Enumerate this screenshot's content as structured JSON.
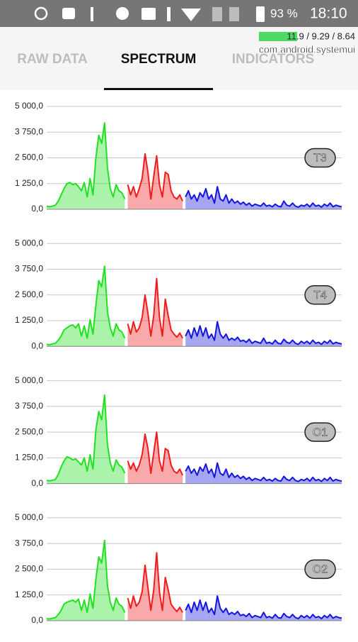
{
  "status_bar": {
    "battery": "93 %",
    "time": "18:10"
  },
  "overlay": {
    "stats": "11.9 / 9.29 / 8.64",
    "process": "com.android.systemui"
  },
  "tabs": {
    "items": [
      "RAW DATA",
      "SPECTRUM",
      "INDICATORS"
    ],
    "selected": 1
  },
  "chart_data": [
    {
      "type": "area",
      "label": "T3",
      "ylim": [
        0,
        5000
      ],
      "grid": true,
      "yticks": [
        {
          "value": 0,
          "label": "0,0"
        },
        {
          "value": 1250,
          "label": "1 250,0"
        },
        {
          "value": 2500,
          "label": "2 500,0"
        },
        {
          "value": 3750,
          "label": "3 750,0"
        },
        {
          "value": 5000,
          "label": "5 000,0"
        }
      ],
      "series": [
        {
          "color": "#22e022",
          "values": [
            150,
            120,
            150,
            200,
            400,
            700,
            1000,
            1250,
            1300,
            1200,
            1250,
            1100,
            900,
            1300,
            600,
            1500,
            700,
            2500,
            3600,
            3200,
            4200,
            2000,
            1000,
            600,
            1200,
            900,
            800,
            500
          ]
        },
        {
          "color": "#ee1c1c",
          "values": [
            1200,
            700,
            1100,
            600,
            1000,
            1500,
            2700,
            1800,
            500,
            1600,
            2600,
            1200,
            600,
            1800,
            1700,
            900,
            600,
            500,
            700,
            400
          ]
        },
        {
          "color": "#1515dd",
          "values": [
            600,
            900,
            500,
            700,
            400,
            800,
            600,
            1000,
            500,
            700,
            300,
            1100,
            500,
            400,
            700,
            300,
            500,
            300,
            400,
            250,
            350,
            200,
            300,
            150,
            250,
            200,
            150,
            300,
            150,
            200,
            120,
            250,
            150,
            120,
            400,
            200,
            150,
            300,
            150,
            100,
            200,
            150,
            250,
            120,
            300,
            150,
            200,
            100,
            250,
            150,
            300,
            120,
            200,
            150,
            120
          ]
        }
      ]
    },
    {
      "type": "area",
      "label": "T4",
      "ylim": [
        0,
        5000
      ],
      "grid": true,
      "yticks": [
        {
          "value": 0,
          "label": "0,0"
        },
        {
          "value": 1250,
          "label": "1 250,0"
        },
        {
          "value": 2500,
          "label": "2 500,0"
        },
        {
          "value": 3750,
          "label": "3 750,0"
        },
        {
          "value": 5000,
          "label": "5 000,0"
        }
      ],
      "series": [
        {
          "color": "#22e022",
          "values": [
            100,
            80,
            120,
            150,
            300,
            500,
            800,
            900,
            1000,
            1050,
            900,
            1100,
            500,
            1000,
            400,
            1300,
            600,
            2000,
            3200,
            2900,
            3900,
            1700,
            900,
            500,
            1100,
            800,
            700,
            400
          ]
        },
        {
          "color": "#ee1c1c",
          "values": [
            1100,
            600,
            1200,
            700,
            900,
            1400,
            2500,
            1600,
            500,
            1500,
            3300,
            1400,
            500,
            2300,
            1500,
            800,
            600,
            450,
            650,
            400
          ]
        },
        {
          "color": "#1515dd",
          "values": [
            500,
            800,
            400,
            900,
            500,
            1000,
            500,
            900,
            400,
            600,
            300,
            1200,
            600,
            400,
            600,
            300,
            400,
            300,
            450,
            250,
            300,
            200,
            350,
            150,
            250,
            200,
            150,
            400,
            150,
            200,
            120,
            300,
            150,
            120,
            350,
            200,
            150,
            300,
            150,
            100,
            250,
            150,
            250,
            120,
            300,
            150,
            200,
            100,
            250,
            150,
            300,
            120,
            200,
            150,
            120
          ]
        }
      ]
    },
    {
      "type": "area",
      "label": "O1",
      "ylim": [
        0,
        5000
      ],
      "grid": true,
      "yticks": [
        {
          "value": 0,
          "label": "0,0"
        },
        {
          "value": 1250,
          "label": "1 250,0"
        },
        {
          "value": 2500,
          "label": "2 500,0"
        },
        {
          "value": 3750,
          "label": "3 750,0"
        },
        {
          "value": 5000,
          "label": "5 000,0"
        }
      ],
      "series": [
        {
          "color": "#22e022",
          "values": [
            150,
            130,
            160,
            200,
            450,
            800,
            1100,
            1300,
            1250,
            1150,
            1200,
            1050,
            900,
            1250,
            600,
            1400,
            700,
            2600,
            3500,
            3100,
            4300,
            1900,
            1000,
            600,
            1150,
            900,
            800,
            500
          ]
        },
        {
          "color": "#ee1c1c",
          "values": [
            1100,
            700,
            1000,
            600,
            900,
            1400,
            2400,
            1700,
            500,
            1500,
            2500,
            1100,
            600,
            1700,
            1600,
            900,
            600,
            500,
            700,
            400
          ]
        },
        {
          "color": "#1515dd",
          "values": [
            600,
            850,
            500,
            700,
            400,
            800,
            600,
            950,
            500,
            700,
            300,
            1000,
            500,
            400,
            700,
            300,
            500,
            300,
            400,
            250,
            350,
            200,
            300,
            150,
            250,
            200,
            150,
            300,
            150,
            200,
            120,
            250,
            150,
            120,
            350,
            200,
            150,
            300,
            150,
            100,
            200,
            150,
            250,
            120,
            300,
            150,
            200,
            100,
            250,
            150,
            300,
            120,
            200,
            150,
            120
          ]
        }
      ]
    },
    {
      "type": "area",
      "label": "O2",
      "ylim": [
        0,
        5000
      ],
      "grid": true,
      "yticks": [
        {
          "value": 0,
          "label": "0,0"
        },
        {
          "value": 1250,
          "label": "1 250,0"
        },
        {
          "value": 2500,
          "label": "2 500,0"
        },
        {
          "value": 3750,
          "label": "3 750,0"
        },
        {
          "value": 5000,
          "label": "5 000,0"
        }
      ],
      "series": [
        {
          "color": "#22e022",
          "values": [
            100,
            80,
            120,
            150,
            300,
            500,
            800,
            900,
            950,
            1000,
            900,
            1050,
            500,
            1000,
            400,
            1300,
            600,
            2000,
            3100,
            2800,
            3900,
            1700,
            900,
            500,
            1100,
            800,
            700,
            400
          ]
        },
        {
          "color": "#ee1c1c",
          "values": [
            1100,
            600,
            1200,
            700,
            900,
            1400,
            2700,
            1600,
            500,
            1500,
            3300,
            1400,
            500,
            2100,
            1500,
            800,
            600,
            450,
            650,
            400
          ]
        },
        {
          "color": "#1515dd",
          "values": [
            500,
            800,
            400,
            900,
            500,
            1000,
            500,
            900,
            400,
            600,
            300,
            1200,
            600,
            400,
            600,
            300,
            400,
            300,
            450,
            250,
            300,
            200,
            350,
            150,
            250,
            200,
            150,
            400,
            150,
            200,
            120,
            300,
            150,
            120,
            350,
            200,
            150,
            300,
            150,
            100,
            250,
            150,
            250,
            120,
            300,
            150,
            200,
            100,
            250,
            150,
            300,
            120,
            200,
            150,
            120
          ]
        }
      ]
    }
  ]
}
